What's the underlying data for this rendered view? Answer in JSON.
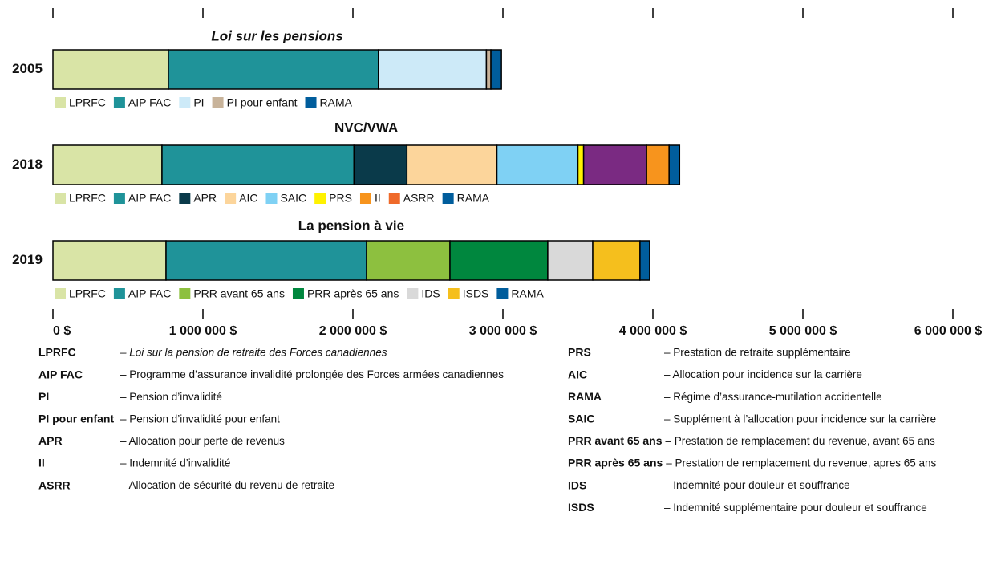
{
  "chart_data": [
    {
      "type": "stacked_bar",
      "title": "Loi sur les pensions",
      "categories": [
        "2005"
      ],
      "xlim": [
        0,
        6000000
      ],
      "xticks": [
        {
          "value": 0,
          "label": "0 $"
        },
        {
          "value": 1000000,
          "label": "1 000 000 $"
        },
        {
          "value": 2000000,
          "label": "2 000 000 $"
        },
        {
          "value": 3000000,
          "label": "3 000 000 $"
        },
        {
          "value": 4000000,
          "label": "4 000 000 $"
        },
        {
          "value": 5000000,
          "label": "5 000 000 $"
        },
        {
          "value": 6000000,
          "label": "6 000 000 $"
        }
      ],
      "series": [
        {
          "name": "LPRFC",
          "color": "#d9e4a6",
          "values": [
            770000
          ]
        },
        {
          "name": "AIP FAC",
          "color": "#1f9399",
          "values": [
            1400000
          ]
        },
        {
          "name": "PI",
          "color": "#cdeaf8",
          "values": [
            720000
          ]
        },
        {
          "name": "PI pour enfant",
          "color": "#c8b39a",
          "values": [
            30000
          ]
        },
        {
          "name": "RAMA",
          "color": "#005d9c",
          "values": [
            70000
          ]
        }
      ]
    },
    {
      "type": "stacked_bar",
      "title": "NVC/VWA",
      "categories": [
        "2018"
      ],
      "series": [
        {
          "name": "LPRFC",
          "color": "#d9e4a6",
          "values": [
            727000
          ]
        },
        {
          "name": "AIP FAC",
          "color": "#1f9399",
          "values": [
            1280000
          ]
        },
        {
          "name": "APR",
          "color": "#0a3a4a",
          "values": [
            353000
          ]
        },
        {
          "name": "AIC",
          "color": "#fcd59b",
          "values": [
            600000
          ]
        },
        {
          "name": "SAIC",
          "color": "#7fd1f4",
          "values": [
            540000
          ]
        },
        {
          "name": "PRS",
          "color": "#fff200",
          "values": [
            38000
          ]
        },
        {
          "name": null,
          "color": "#7a2a82",
          "values": [
            420000
          ]
        },
        {
          "name": "II",
          "color": "#f7941d",
          "values": [
            150000
          ]
        },
        {
          "name": "ASRR",
          "color": "#ef6a2a",
          "values": [
            0
          ]
        },
        {
          "name": "RAMA",
          "color": "#005d9c",
          "values": [
            70000
          ]
        }
      ]
    },
    {
      "type": "stacked_bar",
      "title": "La pension à vie",
      "categories": [
        "2019"
      ],
      "series": [
        {
          "name": "LPRFC",
          "color": "#d9e4a6",
          "values": [
            754000
          ]
        },
        {
          "name": "AIP FAC",
          "color": "#1f9399",
          "values": [
            1337000
          ]
        },
        {
          "name": "PRR avant 65 ans",
          "color": "#8dc03f",
          "values": [
            556000
          ]
        },
        {
          "name": "PRR après 65 ans",
          "color": "#00873e",
          "values": [
            652000
          ]
        },
        {
          "name": "IDS",
          "color": "#d9d9d9",
          "values": [
            300000
          ]
        },
        {
          "name": "ISDS",
          "color": "#f5bf1d",
          "values": [
            315000
          ]
        },
        {
          "name": "RAMA",
          "color": "#005d9c",
          "values": [
            64000
          ]
        }
      ]
    }
  ],
  "glossary": {
    "left": [
      {
        "term": "LPRFC",
        "definition": "– Loi sur la pension de retraite des Forces canadiennes"
      },
      {
        "term": "AIP FAC",
        "definition": "– Programme d’assurance invalidité prolongée des Forces armées canadiennes"
      },
      {
        "term": "PI",
        "definition": "– Pension d’invalidité"
      },
      {
        "term": "PI pour enfant",
        "definition": "– Pension d’invalidité pour enfant"
      },
      {
        "term": "APR",
        "definition": "– Allocation pour perte de revenus"
      },
      {
        "term": "II",
        "definition": "– Indemnité d’invalidité"
      },
      {
        "term": "ASRR",
        "definition": "– Allocation de sécurité du revenu de retraite"
      }
    ],
    "right": [
      {
        "term": "PRS",
        "definition": "– Prestation de retraite supplémentaire"
      },
      {
        "term": "AIC",
        "definition": "– Allocation pour incidence sur la carrière"
      },
      {
        "term": "RAMA",
        "definition": "– Régime d’assurance-mutilation accidentelle"
      },
      {
        "term": "SAIC",
        "definition": "– Supplément à l’allocation pour incidence sur la carrière"
      },
      {
        "term": "PRR avant 65 ans",
        "definition": "– Prestation de remplacement du revenue, avant 65 ans"
      },
      {
        "term": "PRR après 65 ans",
        "definition": "– Prestation de remplacement du revenue, apres 65 ans"
      },
      {
        "term": "IDS",
        "definition": "– Indemnité pour douleur et souffrance"
      },
      {
        "term": "ISDS",
        "definition": "– Indemnité supplémentaire pour douleur et souffrance"
      }
    ]
  }
}
